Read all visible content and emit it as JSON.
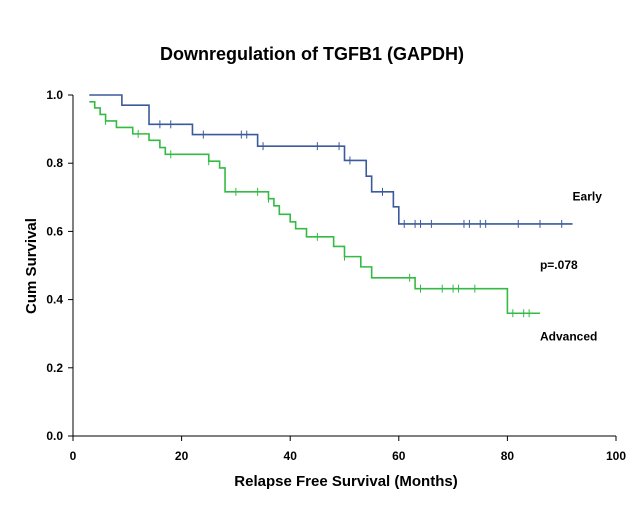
{
  "chart_data": {
    "type": "line",
    "title": "Downregulation of TGFB1 (GAPDH)",
    "xlabel": "Relapse Free Survival (Months)",
    "ylabel": "Cum Survival",
    "xlim": [
      0,
      100
    ],
    "ylim": [
      0,
      1.0
    ],
    "x_ticks": [
      0,
      20,
      40,
      60,
      80,
      100
    ],
    "y_ticks": [
      0.0,
      0.2,
      0.4,
      0.6,
      0.8,
      1.0
    ],
    "x_tick_labels": [
      "0",
      "20",
      "40",
      "60",
      "80",
      "100"
    ],
    "y_tick_labels": [
      "0.0",
      "0.2",
      "0.4",
      "0.6",
      "0.8",
      "1.0"
    ],
    "grid": false,
    "legend": "none",
    "series": [
      {
        "name": "Early",
        "color": "#3a5a9b",
        "steps": [
          [
            3,
            1.0
          ],
          [
            9,
            0.97
          ],
          [
            14,
            0.914
          ],
          [
            22,
            0.884
          ],
          [
            34,
            0.85
          ],
          [
            50,
            0.808
          ],
          [
            54,
            0.762
          ],
          [
            55,
            0.716
          ],
          [
            59,
            0.672
          ],
          [
            60,
            0.622
          ],
          [
            92,
            0.622
          ]
        ],
        "censored": [
          [
            16,
            0.914
          ],
          [
            18,
            0.914
          ],
          [
            24,
            0.884
          ],
          [
            31,
            0.884
          ],
          [
            32,
            0.884
          ],
          [
            35,
            0.85
          ],
          [
            45,
            0.85
          ],
          [
            49,
            0.85
          ],
          [
            51,
            0.808
          ],
          [
            57,
            0.716
          ],
          [
            61,
            0.622
          ],
          [
            63,
            0.622
          ],
          [
            64,
            0.622
          ],
          [
            66,
            0.622
          ],
          [
            72,
            0.622
          ],
          [
            73,
            0.622
          ],
          [
            75,
            0.622
          ],
          [
            76,
            0.622
          ],
          [
            82,
            0.622
          ],
          [
            86,
            0.622
          ],
          [
            90,
            0.622
          ]
        ]
      },
      {
        "name": "Advanced",
        "color": "#33bb44",
        "steps": [
          [
            3,
            0.98
          ],
          [
            4,
            0.962
          ],
          [
            5,
            0.943
          ],
          [
            6,
            0.924
          ],
          [
            8,
            0.905
          ],
          [
            11,
            0.886
          ],
          [
            14,
            0.867
          ],
          [
            16,
            0.846
          ],
          [
            17,
            0.826
          ],
          [
            25,
            0.806
          ],
          [
            27,
            0.786
          ],
          [
            28,
            0.716
          ],
          [
            36,
            0.696
          ],
          [
            37,
            0.675
          ],
          [
            38,
            0.65
          ],
          [
            40,
            0.628
          ],
          [
            41,
            0.608
          ],
          [
            43,
            0.584
          ],
          [
            48,
            0.556
          ],
          [
            50,
            0.526
          ],
          [
            53,
            0.496
          ],
          [
            55,
            0.464
          ],
          [
            63,
            0.432
          ],
          [
            80,
            0.36
          ],
          [
            86,
            0.36
          ]
        ],
        "censored": [
          [
            6,
            0.924
          ],
          [
            12,
            0.886
          ],
          [
            18,
            0.826
          ],
          [
            25,
            0.806
          ],
          [
            30,
            0.716
          ],
          [
            34,
            0.716
          ],
          [
            36,
            0.696
          ],
          [
            45,
            0.584
          ],
          [
            50,
            0.526
          ],
          [
            62,
            0.464
          ],
          [
            64,
            0.432
          ],
          [
            68,
            0.432
          ],
          [
            70,
            0.432
          ],
          [
            71,
            0.432
          ],
          [
            74,
            0.432
          ],
          [
            81,
            0.36
          ],
          [
            83,
            0.36
          ],
          [
            84,
            0.36
          ]
        ]
      }
    ],
    "annotations": [
      {
        "text": "Early",
        "x": 92,
        "y": 0.69
      },
      {
        "text": "p=.078",
        "x": 86,
        "y": 0.49
      },
      {
        "text": "Advanced",
        "x": 86,
        "y": 0.28
      }
    ]
  }
}
